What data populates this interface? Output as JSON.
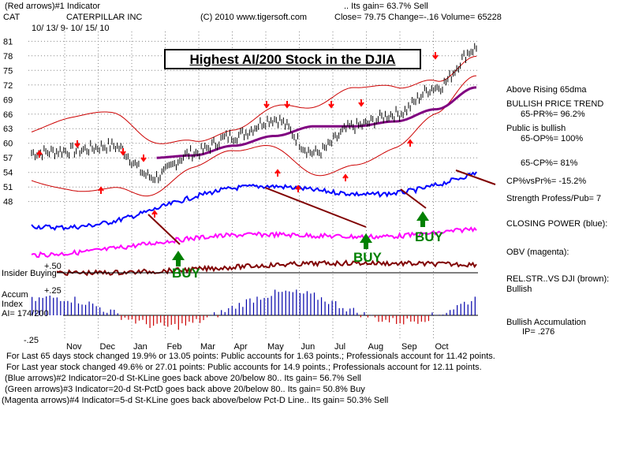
{
  "header": {
    "line1_left": "(Red arrows)#1 Indicator",
    "line1_right": ".. Its gain= 63.7% Sell",
    "ticker": "CAT",
    "company": "CATERPILLAR INC",
    "copyright": "(C) 2010 www.tigersoft.com",
    "quote": "Close=  79.75   Change=-.16 Volume=  65228",
    "date_range": "10/ 13/ 9- 10/ 15/ 10"
  },
  "title": "Highest AI/200 Stock in the DJIA",
  "annotations": {
    "buy1": "BUY",
    "buy2": "BUY",
    "buy3": "BUY"
  },
  "left_panel": {
    "insider": "Insider Buying",
    "plus50": "+.50",
    "plus25": "+.25",
    "minus25": "-.25",
    "accum": "Accum",
    "index": "Index",
    "ai": "AI= 174/200"
  },
  "right_panel": {
    "l1": "Above Rising 65dma",
    "l2": "BULLISH PRICE TREND",
    "l3": "65-PR%= 96.2%",
    "l4": "Public is bullish",
    "l5": "65-OP%= 100%",
    "l6": "65-CP%= 81%",
    "l7": "CP%vsPr%= -15.2%",
    "l8": "Strength Profess/Pub= 7",
    "l9": "CLOSING POWER (blue):",
    "l10": "OBV (magenta):",
    "l11": "REL.STR..VS DJI (brown):",
    "l12": "Bullish",
    "l13": "Bullish Accumulation",
    "l14": "IP=  .276"
  },
  "bottom": {
    "b1": "For Last 65 days stock changed  19.9% or  13.05 points:  Public accounts for  1.63 points.;  Professionals account for  11.42 points.",
    "b2": "For Last year stock changed  49.6% or  27.01 points:  Public accounts for  14.9 points.;  Professionals account for  12.11 points.",
    "b3": "(Blue arrows)#2 Indicator=20-d St-KLine goes back above 20/below 80.. Its gain= 56.7% Sell",
    "b4": "(Green arrows)#3 Indicator=20-d St-PctD goes back above 20/below 80.. Its gain= 50.8% Buy",
    "b5": "(Magenta arrows)#4 Indicator=5-d St-KLine goes back above/below Pct-D Line.. Its gain= 50.3% Sell"
  },
  "colors": {
    "price": "#000000",
    "bands": "#cc0000",
    "ma65": "#800080",
    "closing_power": "#0000ff",
    "obv": "#ff00ff",
    "rel_strength": "#800000",
    "accum": "#0000aa",
    "buy": "#008000",
    "red_arrow": "#ff0000"
  },
  "chart_data": {
    "type": "line",
    "x": [
      "Nov",
      "Dec",
      "Jan",
      "Feb",
      "Mar",
      "Apr",
      "May",
      "Jun",
      "Jul",
      "Aug",
      "Sep",
      "Oct"
    ],
    "yticks": [
      48,
      51,
      54,
      57,
      60,
      63,
      66,
      69,
      72,
      75,
      78,
      81
    ],
    "ylim": [
      46,
      83
    ],
    "grid": true,
    "series": [
      {
        "name": "Price",
        "values": [
          58.0,
          58.5,
          59.5,
          53.0,
          58.0,
          61.5,
          65.0,
          58.0,
          63.5,
          66.0,
          71.5,
          79.5
        ]
      },
      {
        "name": "65dma",
        "values": [
          56.5,
          57.0,
          57.5,
          57.0,
          57.5,
          59.5,
          61.5,
          63.5,
          63.5,
          64.5,
          67.0,
          71.5
        ]
      }
    ],
    "accum_range": [
      -0.25,
      0.5
    ]
  }
}
